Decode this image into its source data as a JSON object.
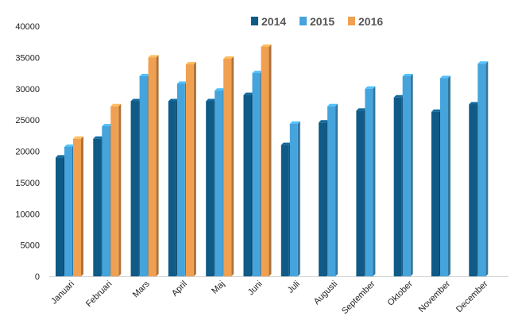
{
  "chart_data": {
    "type": "bar",
    "categories": [
      "Januari",
      "Februari",
      "Mars",
      "April",
      "Maj",
      "Juni",
      "Juli",
      "Augusti",
      "September",
      "Oktober",
      "November",
      "December"
    ],
    "series": [
      {
        "name": "2014",
        "color": "#0f5a86",
        "values": [
          19000,
          22000,
          28000,
          28000,
          28000,
          29000,
          21000,
          24600,
          26500,
          28600,
          26300,
          27500
        ]
      },
      {
        "name": "2015",
        "color": "#45a4dc",
        "values": [
          20700,
          24000,
          32000,
          30800,
          29700,
          32500,
          24400,
          27200,
          30000,
          32000,
          31700,
          34000
        ]
      },
      {
        "name": "2016",
        "color": "#f0a050",
        "values": [
          22000,
          27200,
          35000,
          33900,
          34800,
          36700,
          null,
          null,
          null,
          null,
          null,
          null
        ]
      }
    ],
    "yticks": [
      0,
      5000,
      10000,
      15000,
      20000,
      25000,
      30000,
      35000,
      40000
    ],
    "ylim": [
      0,
      40000
    ],
    "legend_position": "top",
    "grid": false
  }
}
